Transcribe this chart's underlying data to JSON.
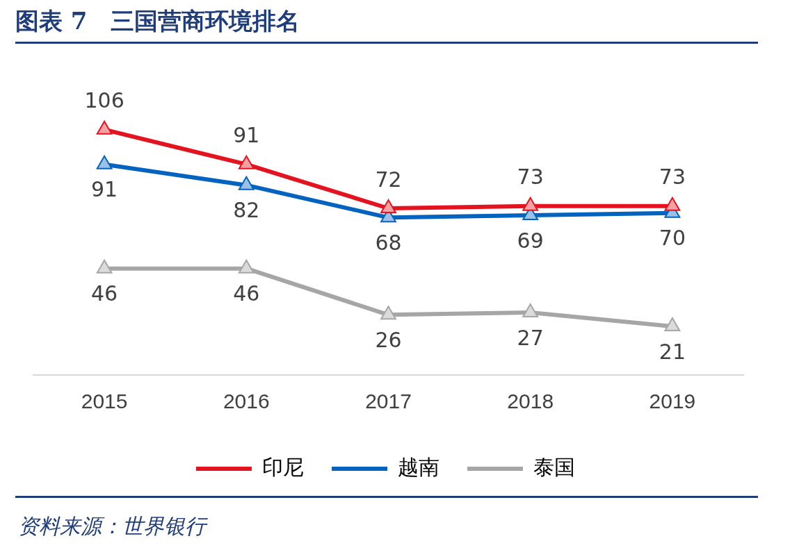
{
  "chart_data": {
    "type": "line",
    "title": "图表 7　三国营商环境排名",
    "annotations": [
      "资料来源：世界银行"
    ],
    "categories": [
      "2015",
      "2016",
      "2017",
      "2018",
      "2019"
    ],
    "series": [
      {
        "name": "印尼",
        "color": "#e3141f",
        "values": [
          106,
          91,
          72,
          73,
          73
        ]
      },
      {
        "name": "越南",
        "color": "#0563c0",
        "values": [
          91,
          82,
          68,
          69,
          70
        ]
      },
      {
        "name": "泰国",
        "color": "#a6a6a6",
        "values": [
          46,
          46,
          26,
          27,
          21
        ]
      }
    ],
    "tick_labels": "x",
    "grid": false,
    "legend": "bottom",
    "marker": "triangle",
    "line_style": "solid",
    "data_labels": true
  }
}
